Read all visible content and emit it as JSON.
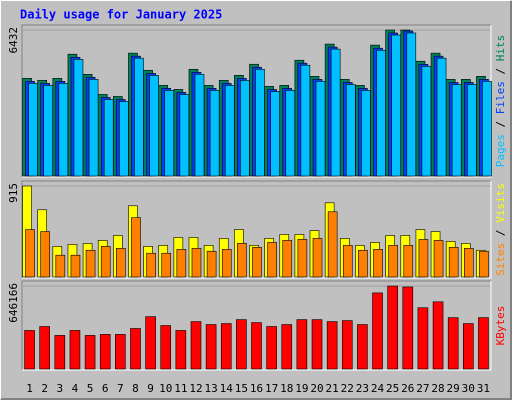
{
  "chart_data": [
    {
      "type": "bar",
      "title": "Daily usage for January 2025",
      "ylim": [
        0,
        6432
      ],
      "yticks": [
        6432
      ],
      "series": [
        {
          "name": "Hits",
          "color": "#00805c",
          "values": [
            4303,
            4214,
            4303,
            5367,
            4480,
            3593,
            3504,
            5412,
            4658,
            3992,
            3815,
            4702,
            3992,
            4214,
            4436,
            4924,
            3948,
            3992,
            5101,
            4392,
            5811,
            4258,
            3992,
            5767,
            6432,
            6432,
            5057,
            5412,
            4258,
            4258,
            4392
          ]
        },
        {
          "name": "Files",
          "color": "#0040ff",
          "values": [
            4170,
            4080,
            4170,
            5230,
            4350,
            3460,
            3370,
            5280,
            4520,
            3860,
            3680,
            4570,
            3860,
            4080,
            4300,
            4790,
            3810,
            3860,
            4970,
            4260,
            5680,
            4120,
            3860,
            5630,
            6300,
            6390,
            4920,
            5280,
            4120,
            4120,
            4260
          ]
        },
        {
          "name": "Pages",
          "color": "#00c0ff",
          "values": [
            4080,
            3990,
            4080,
            5140,
            4260,
            3370,
            3280,
            5190,
            4430,
            3770,
            3590,
            4480,
            3770,
            3990,
            4210,
            4700,
            3720,
            3770,
            4880,
            4170,
            5590,
            4030,
            3770,
            5540,
            6210,
            6300,
            4830,
            5190,
            4030,
            4030,
            4170
          ]
        }
      ]
    },
    {
      "type": "bar",
      "ylim": [
        0,
        915
      ],
      "yticks": [
        915
      ],
      "series": [
        {
          "name": "Visits",
          "color": "#ffff00",
          "values": [
            915,
            676,
            308,
            328,
            338,
            368,
            418,
            716,
            308,
            318,
            398,
            398,
            318,
            388,
            477,
            318,
            388,
            428,
            428,
            467,
            746,
            388,
            318,
            348,
            418,
            418,
            477,
            457,
            358,
            338,
            269
          ]
        },
        {
          "name": "Sites",
          "color": "#ff8000",
          "values": [
            477,
            457,
            219,
            219,
            269,
            308,
            288,
            597,
            239,
            239,
            278,
            288,
            259,
            278,
            338,
            298,
            348,
            368,
            378,
            388,
            656,
            318,
            269,
            278,
            318,
            318,
            378,
            368,
            298,
            288,
            259
          ]
        }
      ]
    },
    {
      "type": "bar",
      "ylim": [
        0,
        646166
      ],
      "yticks": [
        646166
      ],
      "categories": [
        "1",
        "2",
        "3",
        "4",
        "5",
        "6",
        "7",
        "8",
        "9",
        "10",
        "11",
        "12",
        "13",
        "14",
        "15",
        "16",
        "17",
        "18",
        "19",
        "20",
        "21",
        "22",
        "23",
        "24",
        "25",
        "26",
        "27",
        "28",
        "29",
        "30",
        "31"
      ],
      "highlight": [
        3,
        4,
        10,
        11,
        17,
        18,
        24,
        25
      ],
      "highlight_color": "#00805c",
      "series": [
        {
          "name": "KBytes",
          "color": "#ff0000",
          "values": [
            300008,
            330778,
            261545,
            300008,
            261545,
            269238,
            269238,
            315393,
            407703,
            338470,
            300008,
            369240,
            346163,
            353855,
            384625,
            361548,
            330778,
            346163,
            384625,
            384625,
            369240,
            376933,
            346163,
            592323,
            646166,
            638478,
            476935,
            523089,
            400010,
            353855,
            400010
          ]
        }
      ]
    }
  ]
}
